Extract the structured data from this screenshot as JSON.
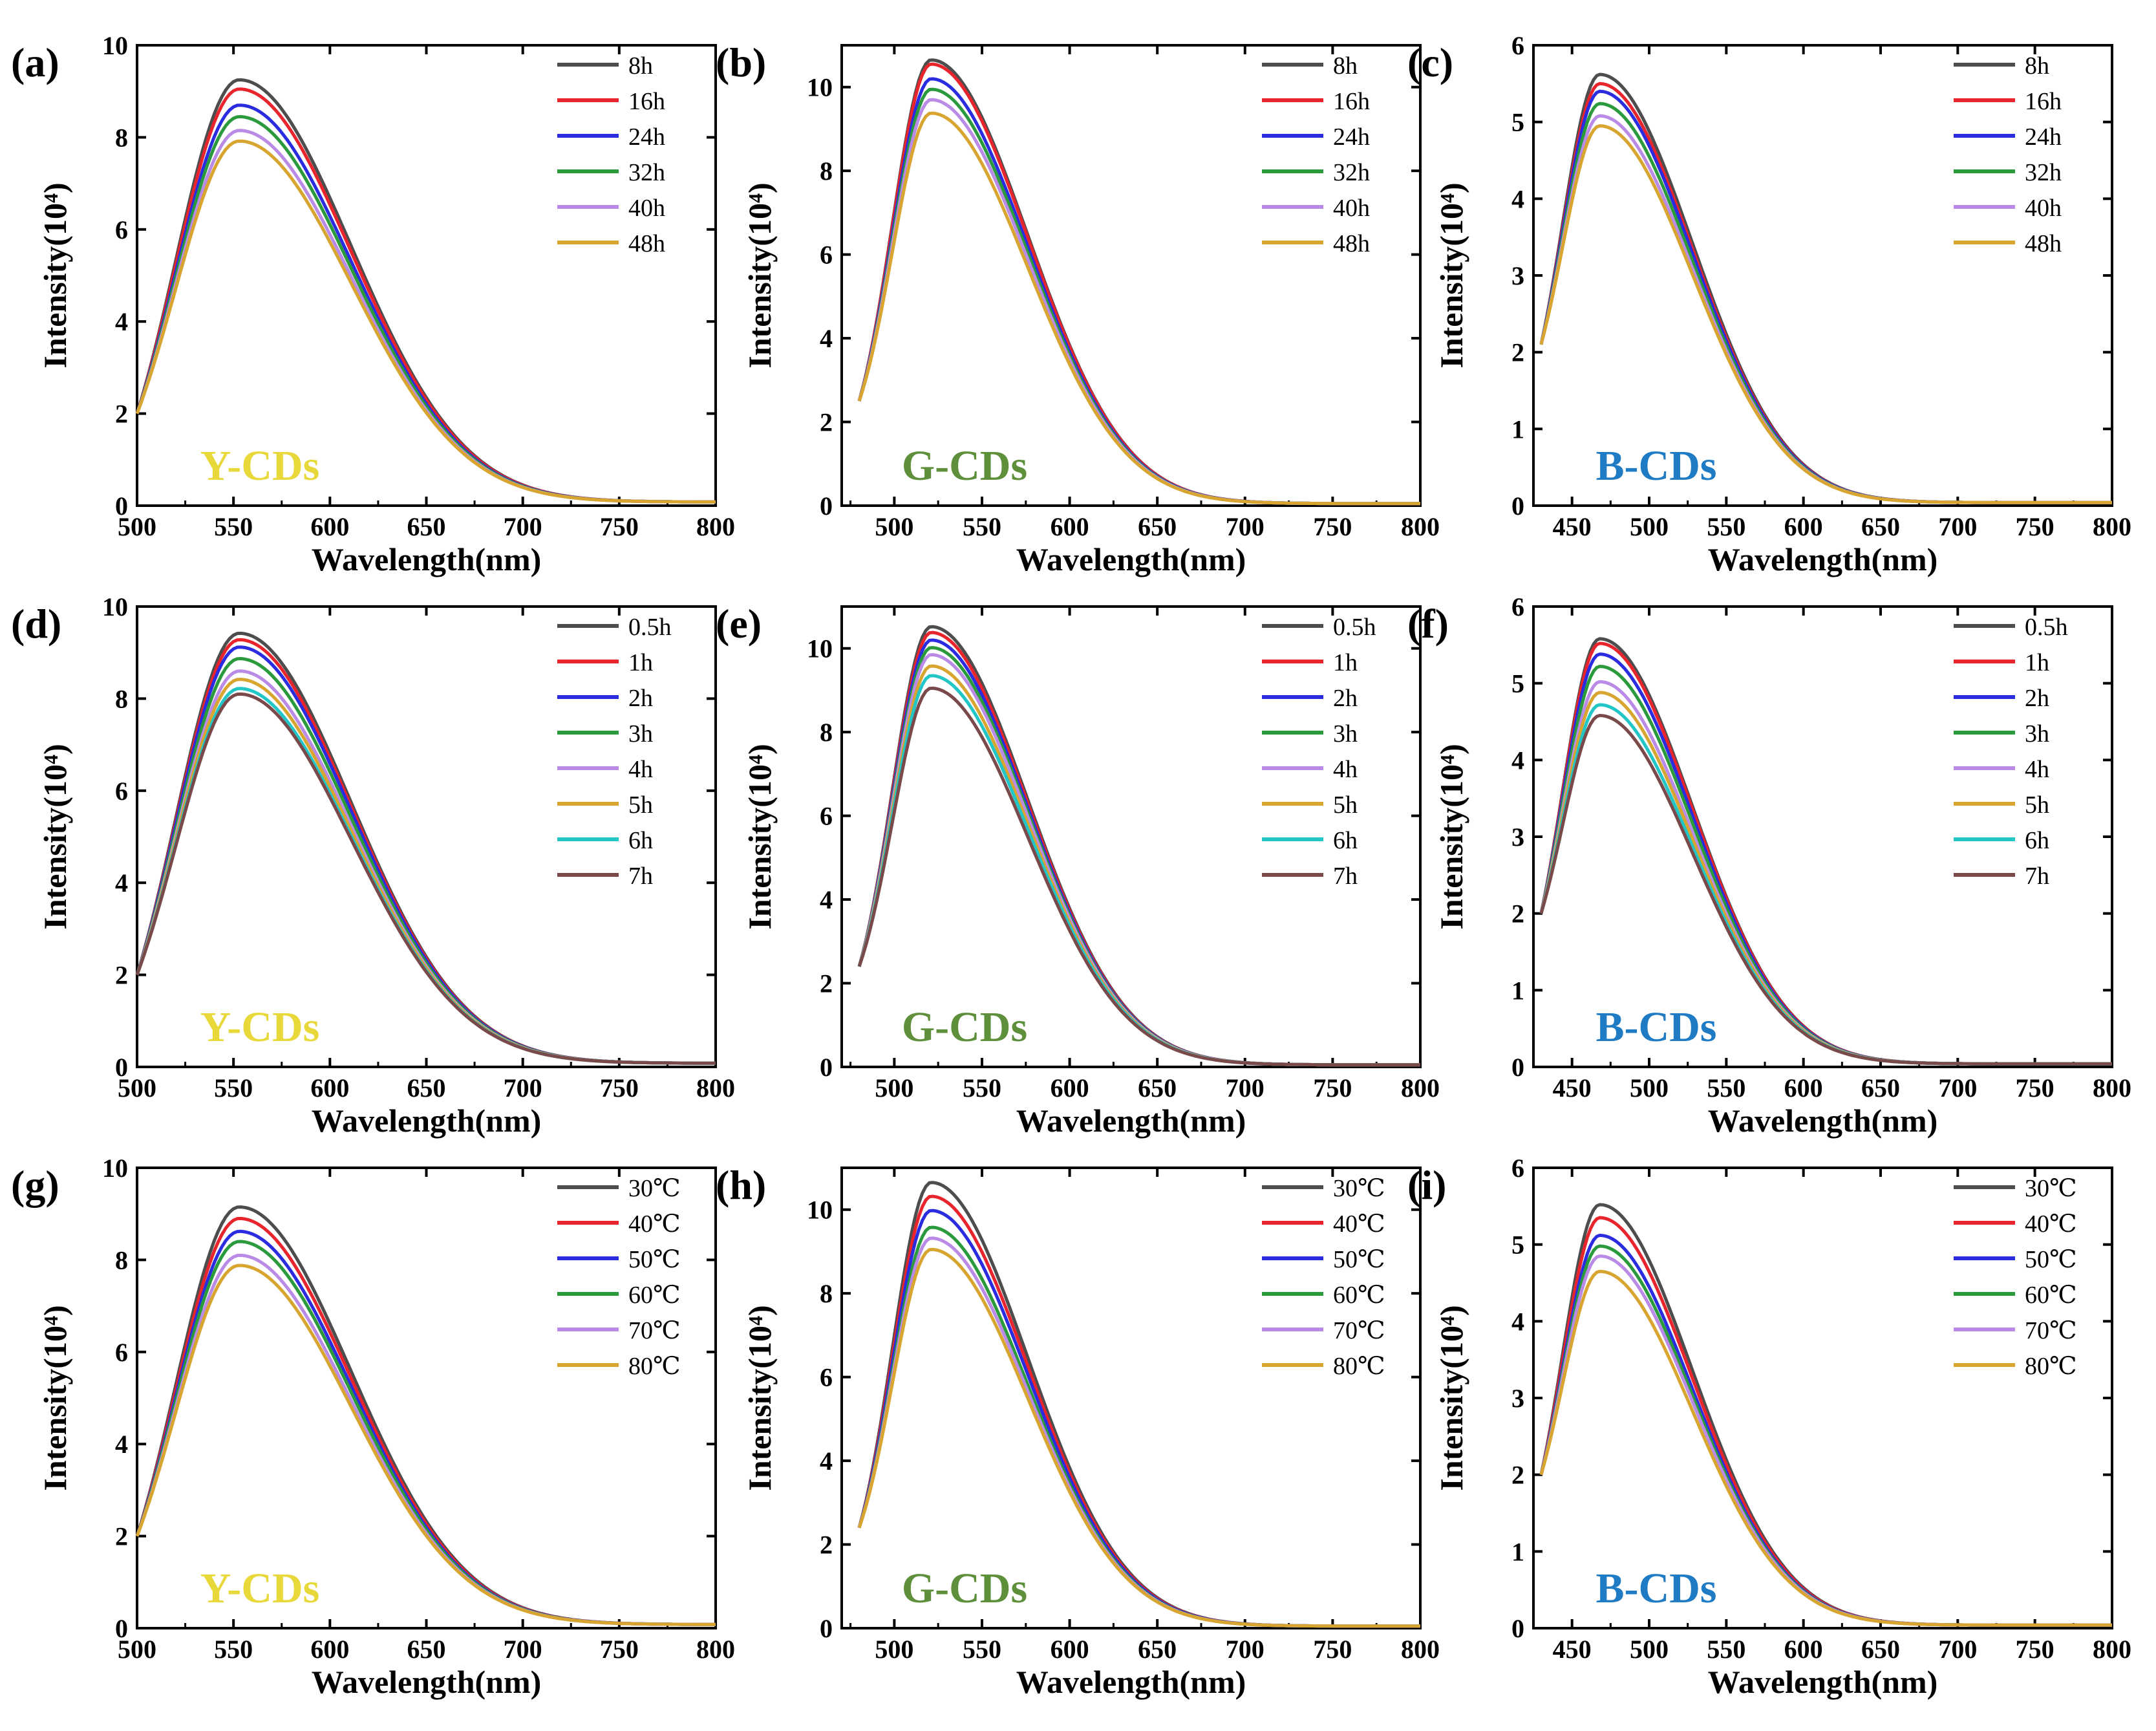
{
  "figure": {
    "samples": {
      "Y": {
        "text": "Y-CDs",
        "color": "#E8D83A"
      },
      "G": {
        "text": "G-CDs",
        "color": "#5E8F3A"
      },
      "B": {
        "text": "B-CDs",
        "color": "#1F7BC4"
      }
    }
  },
  "chart_data": [
    {
      "panel": "(a)",
      "type": "line",
      "sample": "Y",
      "xlabel": "Wavelength(nm)",
      "ylabel": "Intensity(10⁴)",
      "xlim": [
        500,
        800
      ],
      "ylim": [
        0,
        10
      ],
      "xticks": [
        500,
        550,
        600,
        650,
        700,
        750,
        800
      ],
      "yticks": [
        0,
        2,
        4,
        6,
        8,
        10
      ],
      "peak_nm": 553,
      "start_nm": 500,
      "end_nm": 800,
      "start_value": 2.0,
      "tail_value": 0.08,
      "sigma_left": 33,
      "sigma_right": 58,
      "legend_placement": "top-right",
      "series": [
        {
          "name": "8h",
          "color": "#4d4d4d",
          "peak": 9.25
        },
        {
          "name": "16h",
          "color": "#e8242c",
          "peak": 9.05
        },
        {
          "name": "24h",
          "color": "#2b2be0",
          "peak": 8.7
        },
        {
          "name": "32h",
          "color": "#2a9a3c",
          "peak": 8.45
        },
        {
          "name": "40h",
          "color": "#b98be6",
          "peak": 8.15
        },
        {
          "name": "48h",
          "color": "#d7a530",
          "peak": 7.92
        }
      ]
    },
    {
      "panel": "(b)",
      "type": "line",
      "sample": "G",
      "xlabel": "Wavelength(nm)",
      "ylabel": "Intensity(10⁴)",
      "xlim": [
        470,
        800
      ],
      "ylim": [
        0,
        11
      ],
      "xticks": [
        500,
        550,
        600,
        650,
        700,
        750,
        800
      ],
      "yticks": [
        0,
        2,
        4,
        6,
        8,
        10
      ],
      "peak_nm": 521,
      "start_nm": 480,
      "end_nm": 800,
      "start_value": 2.5,
      "tail_value": 0.05,
      "sigma_left": 22,
      "sigma_right": 55,
      "legend_placement": "top-right",
      "series": [
        {
          "name": "8h",
          "color": "#4d4d4d",
          "peak": 10.65
        },
        {
          "name": "16h",
          "color": "#e8242c",
          "peak": 10.55
        },
        {
          "name": "24h",
          "color": "#2b2be0",
          "peak": 10.2
        },
        {
          "name": "32h",
          "color": "#2a9a3c",
          "peak": 9.95
        },
        {
          "name": "40h",
          "color": "#b98be6",
          "peak": 9.7
        },
        {
          "name": "48h",
          "color": "#d7a530",
          "peak": 9.38
        }
      ]
    },
    {
      "panel": "(c)",
      "type": "line",
      "sample": "B",
      "xlabel": "Wavelength(nm)",
      "ylabel": "Intensity(10⁴)",
      "xlim": [
        425,
        800
      ],
      "ylim": [
        0,
        6
      ],
      "xticks": [
        450,
        500,
        550,
        600,
        650,
        700,
        750,
        800
      ],
      "yticks": [
        0,
        1,
        2,
        3,
        4,
        5,
        6
      ],
      "peak_nm": 468,
      "start_nm": 430,
      "end_nm": 800,
      "start_value": 2.1,
      "tail_value": 0.04,
      "sigma_left": 24,
      "sigma_right": 60,
      "legend_placement": "top-right",
      "series": [
        {
          "name": "8h",
          "color": "#4d4d4d",
          "peak": 5.62
        },
        {
          "name": "16h",
          "color": "#e8242c",
          "peak": 5.5
        },
        {
          "name": "24h",
          "color": "#2b2be0",
          "peak": 5.4
        },
        {
          "name": "32h",
          "color": "#2a9a3c",
          "peak": 5.24
        },
        {
          "name": "40h",
          "color": "#b98be6",
          "peak": 5.08
        },
        {
          "name": "48h",
          "color": "#d7a530",
          "peak": 4.95
        }
      ]
    },
    {
      "panel": "(d)",
      "type": "line",
      "sample": "Y",
      "xlabel": "Wavelength(nm)",
      "ylabel": "Intensity(10⁴)",
      "xlim": [
        500,
        800
      ],
      "ylim": [
        0,
        10
      ],
      "xticks": [
        500,
        550,
        600,
        650,
        700,
        750,
        800
      ],
      "yticks": [
        0,
        2,
        4,
        6,
        8,
        10
      ],
      "peak_nm": 553,
      "start_nm": 500,
      "end_nm": 800,
      "start_value": 2.0,
      "tail_value": 0.08,
      "sigma_left": 33,
      "sigma_right": 58,
      "legend_placement": "top-right",
      "series": [
        {
          "name": "0.5h",
          "color": "#4d4d4d",
          "peak": 9.42
        },
        {
          "name": "1h",
          "color": "#e8242c",
          "peak": 9.28
        },
        {
          "name": "2h",
          "color": "#2b2be0",
          "peak": 9.12
        },
        {
          "name": "3h",
          "color": "#2a9a3c",
          "peak": 8.87
        },
        {
          "name": "4h",
          "color": "#b98be6",
          "peak": 8.6
        },
        {
          "name": "5h",
          "color": "#d7a530",
          "peak": 8.42
        },
        {
          "name": "6h",
          "color": "#22c6c6",
          "peak": 8.22
        },
        {
          "name": "7h",
          "color": "#7a4a4a",
          "peak": 8.1
        }
      ]
    },
    {
      "panel": "(e)",
      "type": "line",
      "sample": "G",
      "xlabel": "Wavelength(nm)",
      "ylabel": "Intensity(10⁴)",
      "xlim": [
        470,
        800
      ],
      "ylim": [
        0,
        11
      ],
      "xticks": [
        500,
        550,
        600,
        650,
        700,
        750,
        800
      ],
      "yticks": [
        0,
        2,
        4,
        6,
        8,
        10
      ],
      "peak_nm": 521,
      "start_nm": 480,
      "end_nm": 800,
      "start_value": 2.4,
      "tail_value": 0.05,
      "sigma_left": 22,
      "sigma_right": 55,
      "legend_placement": "top-right",
      "series": [
        {
          "name": "0.5h",
          "color": "#4d4d4d",
          "peak": 10.52
        },
        {
          "name": "1h",
          "color": "#e8242c",
          "peak": 10.38
        },
        {
          "name": "2h",
          "color": "#2b2be0",
          "peak": 10.2
        },
        {
          "name": "3h",
          "color": "#2a9a3c",
          "peak": 10.02
        },
        {
          "name": "4h",
          "color": "#b98be6",
          "peak": 9.85
        },
        {
          "name": "5h",
          "color": "#d7a530",
          "peak": 9.58
        },
        {
          "name": "6h",
          "color": "#22c6c6",
          "peak": 9.35
        },
        {
          "name": "7h",
          "color": "#7a4a4a",
          "peak": 9.05
        }
      ]
    },
    {
      "panel": "(f)",
      "type": "line",
      "sample": "B",
      "xlabel": "Wavelength(nm)",
      "ylabel": "Intensity(10⁴)",
      "xlim": [
        425,
        800
      ],
      "ylim": [
        0,
        6
      ],
      "xticks": [
        450,
        500,
        550,
        600,
        650,
        700,
        750,
        800
      ],
      "yticks": [
        0,
        1,
        2,
        3,
        4,
        5,
        6
      ],
      "peak_nm": 468,
      "start_nm": 430,
      "end_nm": 800,
      "start_value": 2.0,
      "tail_value": 0.04,
      "sigma_left": 24,
      "sigma_right": 60,
      "legend_placement": "top-right",
      "series": [
        {
          "name": "0.5h",
          "color": "#4d4d4d",
          "peak": 5.58
        },
        {
          "name": "1h",
          "color": "#e8242c",
          "peak": 5.52
        },
        {
          "name": "2h",
          "color": "#2b2be0",
          "peak": 5.38
        },
        {
          "name": "3h",
          "color": "#2a9a3c",
          "peak": 5.22
        },
        {
          "name": "4h",
          "color": "#b98be6",
          "peak": 5.02
        },
        {
          "name": "5h",
          "color": "#d7a530",
          "peak": 4.88
        },
        {
          "name": "6h",
          "color": "#22c6c6",
          "peak": 4.72
        },
        {
          "name": "7h",
          "color": "#7a4a4a",
          "peak": 4.58
        }
      ]
    },
    {
      "panel": "(g)",
      "type": "line",
      "sample": "Y",
      "xlabel": "Wavelength(nm)",
      "ylabel": "Intensity(10⁴)",
      "xlim": [
        500,
        800
      ],
      "ylim": [
        0,
        10
      ],
      "xticks": [
        500,
        550,
        600,
        650,
        700,
        750,
        800
      ],
      "yticks": [
        0,
        2,
        4,
        6,
        8,
        10
      ],
      "peak_nm": 553,
      "start_nm": 500,
      "end_nm": 800,
      "start_value": 2.0,
      "tail_value": 0.08,
      "sigma_left": 33,
      "sigma_right": 58,
      "legend_placement": "top-right",
      "series": [
        {
          "name": "30℃",
          "color": "#4d4d4d",
          "peak": 9.15
        },
        {
          "name": "40℃",
          "color": "#e8242c",
          "peak": 8.9
        },
        {
          "name": "50℃",
          "color": "#2b2be0",
          "peak": 8.62
        },
        {
          "name": "60℃",
          "color": "#2a9a3c",
          "peak": 8.4
        },
        {
          "name": "70℃",
          "color": "#b98be6",
          "peak": 8.1
        },
        {
          "name": "80℃",
          "color": "#d7a530",
          "peak": 7.88
        }
      ]
    },
    {
      "panel": "(h)",
      "type": "line",
      "sample": "G",
      "xlabel": "Wavelength(nm)",
      "ylabel": "Intensity(10⁴)",
      "xlim": [
        470,
        800
      ],
      "ylim": [
        0,
        11
      ],
      "xticks": [
        500,
        550,
        600,
        650,
        700,
        750,
        800
      ],
      "yticks": [
        0,
        2,
        4,
        6,
        8,
        10
      ],
      "peak_nm": 521,
      "start_nm": 480,
      "end_nm": 800,
      "start_value": 2.4,
      "tail_value": 0.05,
      "sigma_left": 22,
      "sigma_right": 55,
      "legend_placement": "top-right",
      "series": [
        {
          "name": "30℃",
          "color": "#4d4d4d",
          "peak": 10.65
        },
        {
          "name": "40℃",
          "color": "#e8242c",
          "peak": 10.32
        },
        {
          "name": "50℃",
          "color": "#2b2be0",
          "peak": 9.98
        },
        {
          "name": "60℃",
          "color": "#2a9a3c",
          "peak": 9.58
        },
        {
          "name": "70℃",
          "color": "#b98be6",
          "peak": 9.32
        },
        {
          "name": "80℃",
          "color": "#d7a530",
          "peak": 9.05
        }
      ]
    },
    {
      "panel": "(i)",
      "type": "line",
      "sample": "B",
      "xlabel": "Wavelength(nm)",
      "ylabel": "Intensity(10⁴)",
      "xlim": [
        425,
        800
      ],
      "ylim": [
        0,
        6
      ],
      "xticks": [
        450,
        500,
        550,
        600,
        650,
        700,
        750,
        800
      ],
      "yticks": [
        0,
        1,
        2,
        3,
        4,
        5,
        6
      ],
      "peak_nm": 468,
      "start_nm": 430,
      "end_nm": 800,
      "start_value": 2.0,
      "tail_value": 0.04,
      "sigma_left": 24,
      "sigma_right": 60,
      "legend_placement": "top-right",
      "series": [
        {
          "name": "30℃",
          "color": "#4d4d4d",
          "peak": 5.52
        },
        {
          "name": "40℃",
          "color": "#e8242c",
          "peak": 5.35
        },
        {
          "name": "50℃",
          "color": "#2b2be0",
          "peak": 5.12
        },
        {
          "name": "60℃",
          "color": "#2a9a3c",
          "peak": 4.98
        },
        {
          "name": "70℃",
          "color": "#b98be6",
          "peak": 4.85
        },
        {
          "name": "80℃",
          "color": "#d7a530",
          "peak": 4.65
        }
      ]
    }
  ]
}
